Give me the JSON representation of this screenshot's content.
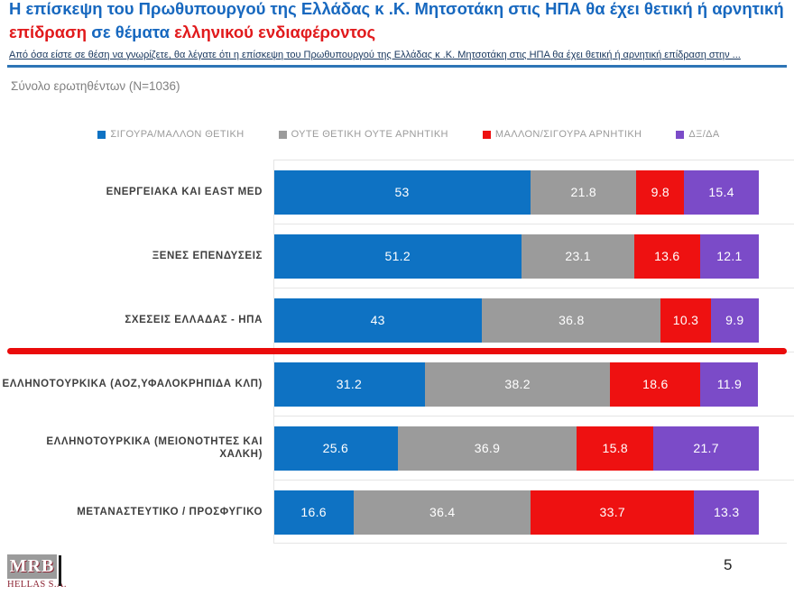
{
  "title": {
    "line1": "Η επίσκεψη του Πρωθυπουργού της Ελλάδας κ .Κ. Μητσοτάκη  στις ΗΠΑ θα έχει θετική ή αρνητική",
    "line2_red1": "επίδραση",
    "line2_blue": "  σε θέματα ",
    "line2_red2": "ελληνικού ενδιαφέροντος"
  },
  "subtitle": "Από όσα είστε σε θέση να γνωρίζετε,  θα λέγατε ότι η επίσκεψη του Πρωθυπουργού της Ελλάδας κ .Κ. Μητσοτάκη  στις ΗΠΑ θα έχει θετική ή αρνητική επίδραση στην ...",
  "sample_label": "Σύνολο ερωτηθέντων (N=1036)",
  "page_number": "5",
  "logo": {
    "text": "MRB",
    "subtext": "HELLAS S.A."
  },
  "colors": {
    "title_blue": "#1768bf",
    "title_red": "#e11a1c",
    "subtitle_navy": "#17365d",
    "subtitle_rule_blue": "#2e75b6",
    "sample_gray": "#808080",
    "legend_text_gray": "#9b9b9b",
    "label_gray": "#3f3f3f",
    "grid_gray": "#e5e5e5",
    "divider_red": "#ea0b0b",
    "logo_maroon": "#8b2332",
    "logo_box_gray": "#9b9b9b"
  },
  "chart_data": {
    "type": "bar",
    "stacked": true,
    "orientation": "horizontal",
    "unit": "%",
    "xlim": [
      0,
      100
    ],
    "grid": false,
    "legend_position": "top",
    "value_labels": "inside-white",
    "divider_after_category_index": 2,
    "categories": [
      "ΕΝΕΡΓΕΙΑΚΑ ΚΑΙ EAST MED",
      "ΞΕΝΕΣ ΕΠΕΝΔΥΣΕΙΣ",
      "ΣΧΕΣΕΙΣ ΕΛΛΑΔΑΣ - ΗΠΑ",
      "ΕΛΛΗΝΟΤΟΥΡΚΙΚΑ (ΑΟΖ,ΥΦΑΛΟΚΡΗΠΙΔΑ ΚΛΠ)",
      "ΕΛΛΗΝΟΤΟΥΡΚΙΚΑ (ΜΕΙΟΝΟΤΗΤΕΣ ΚΑΙ ΧΑΛΚΗ)",
      "ΜΕΤΑΝΑΣΤΕΥΤΙΚΟ / ΠΡΟΣΦΥΓΙΚΟ"
    ],
    "series": [
      {
        "name": "ΣΙΓΟΥΡΑ/ΜΑΛΛΟΝ ΘΕΤΙΚΗ",
        "color": "#0e72c3",
        "values": [
          53,
          51.2,
          43,
          31.2,
          25.6,
          16.6
        ]
      },
      {
        "name": "ΟΥΤΕ ΘΕΤΙΚΗ ΟΥΤΕ ΑΡΝΗΤΙΚΗ",
        "color": "#9b9b9b",
        "values": [
          21.8,
          23.1,
          36.8,
          38.2,
          36.9,
          36.4
        ]
      },
      {
        "name": "ΜΑΛΛΟΝ/ΣΙΓΟΥΡΑ ΑΡΝΗΤΙΚΗ",
        "color": "#ee1111",
        "values": [
          9.8,
          13.6,
          10.3,
          18.6,
          15.8,
          33.7
        ]
      },
      {
        "name": "ΔΞ/ΔΑ",
        "color": "#7b4bc8",
        "values": [
          15.4,
          12.1,
          9.9,
          11.9,
          21.7,
          13.3
        ]
      }
    ]
  }
}
